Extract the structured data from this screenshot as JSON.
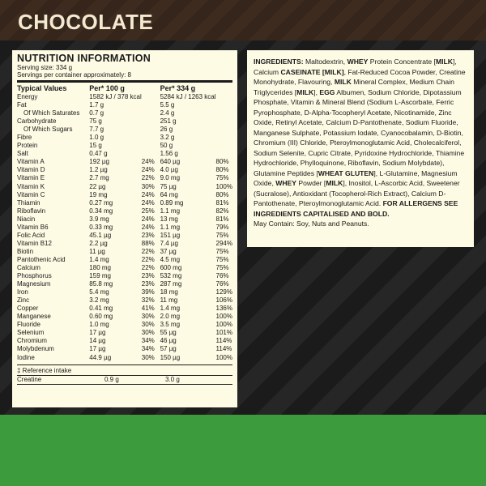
{
  "header": {
    "title": "CHOCOLATE"
  },
  "nutrition": {
    "title": "NUTRITION INFORMATION",
    "serving_size": "Serving size: 334 g",
    "servings": "Servings per container approximately: 8",
    "columns": [
      "Typical Values",
      "Per* 100 g",
      "Per* 334 g"
    ],
    "rows": [
      {
        "name": "Energy",
        "per100": "1582 kJ / 378 kcal",
        "per334": "5284 kJ / 1263 kcal"
      },
      {
        "name": "Fat",
        "per100": "1.7 g",
        "per334": "5.5 g"
      },
      {
        "name": "Of Which Saturates",
        "indent": true,
        "per100": "0.7 g",
        "per334": "2.4 g"
      },
      {
        "name": "Carbohydrate",
        "per100": "75 g",
        "per334": "251 g"
      },
      {
        "name": "Of Which Sugars",
        "indent": true,
        "per100": "7.7 g",
        "per334": "26 g"
      },
      {
        "name": "Fibre",
        "per100": "1.0 g",
        "per334": "3.2 g"
      },
      {
        "name": "Protein",
        "per100": "15 g",
        "per334": "50 g"
      },
      {
        "name": "Salt",
        "per100": "0.47 g",
        "per334": "1.56 g"
      },
      {
        "name": "Vitamin A",
        "per100": "192 µg",
        "pct100": "24%",
        "per334": "640 µg",
        "pct334": "80%"
      },
      {
        "name": "Vitamin D",
        "per100": "1.2 µg",
        "pct100": "24%",
        "per334": "4.0 µg",
        "pct334": "80%"
      },
      {
        "name": "Vitamin E",
        "per100": "2.7 mg",
        "pct100": "22%",
        "per334": "9.0 mg",
        "pct334": "75%"
      },
      {
        "name": "Vitamin K",
        "per100": "22 µg",
        "pct100": "30%",
        "per334": "75 µg",
        "pct334": "100%"
      },
      {
        "name": "Vitamin C",
        "per100": "19 mg",
        "pct100": "24%",
        "per334": "64 mg",
        "pct334": "80%"
      },
      {
        "name": "Thiamin",
        "per100": "0.27 mg",
        "pct100": "24%",
        "per334": "0.89 mg",
        "pct334": "81%"
      },
      {
        "name": "Riboflavin",
        "per100": "0.34 mg",
        "pct100": "25%",
        "per334": "1.1 mg",
        "pct334": "82%"
      },
      {
        "name": "Niacin",
        "per100": "3.9 mg",
        "pct100": "24%",
        "per334": "13 mg",
        "pct334": "81%"
      },
      {
        "name": "Vitamin B6",
        "per100": "0.33 mg",
        "pct100": "24%",
        "per334": "1.1 mg",
        "pct334": "79%"
      },
      {
        "name": "Folic Acid",
        "per100": "45.1 µg",
        "pct100": "23%",
        "per334": "151 µg",
        "pct334": "75%"
      },
      {
        "name": "Vitamin B12",
        "per100": "2.2 µg",
        "pct100": "88%",
        "per334": "7.4 µg",
        "pct334": "294%"
      },
      {
        "name": "Biotin",
        "per100": "11 µg",
        "pct100": "22%",
        "per334": "37 µg",
        "pct334": "75%"
      },
      {
        "name": "Pantothenic Acid",
        "per100": "1.4 mg",
        "pct100": "22%",
        "per334": "4.5 mg",
        "pct334": "75%"
      },
      {
        "name": "Calcium",
        "per100": "180 mg",
        "pct100": "22%",
        "per334": "600 mg",
        "pct334": "75%"
      },
      {
        "name": "Phosphorus",
        "per100": "159 mg",
        "pct100": "23%",
        "per334": "532 mg",
        "pct334": "76%"
      },
      {
        "name": "Magnesium",
        "per100": "85.8 mg",
        "pct100": "23%",
        "per334": "287 mg",
        "pct334": "76%"
      },
      {
        "name": "Iron",
        "per100": "5.4 mg",
        "pct100": "39%",
        "per334": "18 mg",
        "pct334": "129%"
      },
      {
        "name": "Zinc",
        "per100": "3.2 mg",
        "pct100": "32%",
        "per334": "11 mg",
        "pct334": "106%"
      },
      {
        "name": "Copper",
        "per100": "0.41 mg",
        "pct100": "41%",
        "per334": "1.4 mg",
        "pct334": "136%"
      },
      {
        "name": "Manganese",
        "per100": "0.60 mg",
        "pct100": "30%",
        "per334": "2.0 mg",
        "pct334": "100%"
      },
      {
        "name": "Fluoride",
        "per100": "1.0 mg",
        "pct100": "30%",
        "per334": "3.5 mg",
        "pct334": "100%"
      },
      {
        "name": "Selenium",
        "per100": "17 µg",
        "pct100": "30%",
        "per334": "55 µg",
        "pct334": "101%"
      },
      {
        "name": "Chromium",
        "per100": "14 µg",
        "pct100": "34%",
        "per334": "46 µg",
        "pct334": "114%"
      },
      {
        "name": "Molybdenum",
        "per100": "17 µg",
        "pct100": "34%",
        "per334": "57 µg",
        "pct334": "114%"
      },
      {
        "name": "Iodine",
        "per100": "44.9 µg",
        "pct100": "30%",
        "per334": "150 µg",
        "pct334": "100%"
      }
    ],
    "footnote": "‡ Reference intake",
    "extra_rows": [
      {
        "name": "Creatine",
        "per100": "0.9 g",
        "per334": "3.0 g"
      }
    ]
  },
  "ingredients": {
    "segments": [
      {
        "text": "INGREDIENTS:",
        "bold": true
      },
      {
        "text": " Maltodextrin, ",
        "bold": false
      },
      {
        "text": "WHEY",
        "bold": true
      },
      {
        "text": " Protein Concentrate [",
        "bold": false
      },
      {
        "text": "MILK",
        "bold": true
      },
      {
        "text": "], Calcium ",
        "bold": false
      },
      {
        "text": "CASEINATE [MILK]",
        "bold": true
      },
      {
        "text": ", Fat-Reduced Cocoa Powder, Creatine Monohydrate, Flavouring, ",
        "bold": false
      },
      {
        "text": "MILK",
        "bold": true
      },
      {
        "text": " Mineral Complex, Medium Chain Triglycerides [",
        "bold": false
      },
      {
        "text": "MILK",
        "bold": true
      },
      {
        "text": "], ",
        "bold": false
      },
      {
        "text": "EGG",
        "bold": true
      },
      {
        "text": " Albumen, Sodium Chloride, Dipotassium Phosphate, Vitamin & Mineral Blend (Sodium L-Ascorbate, Ferric Pyrophosphate, D-Alpha-Tocopheryl Acetate, Nicotinamide, Zinc Oxide, Retinyl Acetate, Calcium D-Pantothenate, Sodium Fluoride, Manganese Sulphate, Potassium Iodate, Cyanocobalamin, D-Biotin, Chromium (III) Chloride, Pteroylmonoglutamic Acid, Cholecalciferol, Sodium Selenite, Cupric Citrate, Pyridoxine Hydrochloride, Thiamine Hydrochloride, Phylloquinone, Riboflavin, Sodium Molybdate), Glutamine Peptides [",
        "bold": false
      },
      {
        "text": "WHEAT GLUTEN",
        "bold": true
      },
      {
        "text": "], L-Glutamine, Magnesium Oxide, ",
        "bold": false
      },
      {
        "text": "WHEY",
        "bold": true
      },
      {
        "text": " Powder [",
        "bold": false
      },
      {
        "text": "MILK",
        "bold": true
      },
      {
        "text": "], Inositol, L-Ascorbic Acid, Sweetener (Sucralose), Antioxidant (Tocopherol-Rich Extract), Calcium D-Pantothenate, Pteroylmonoglutamic Acid. ",
        "bold": false
      },
      {
        "text": "FOR ALLERGENS SEE INGREDIENTS CAPITALISED AND BOLD.",
        "bold": true
      }
    ],
    "may_contain": "May Contain: Soy, Nuts and Peanuts."
  }
}
